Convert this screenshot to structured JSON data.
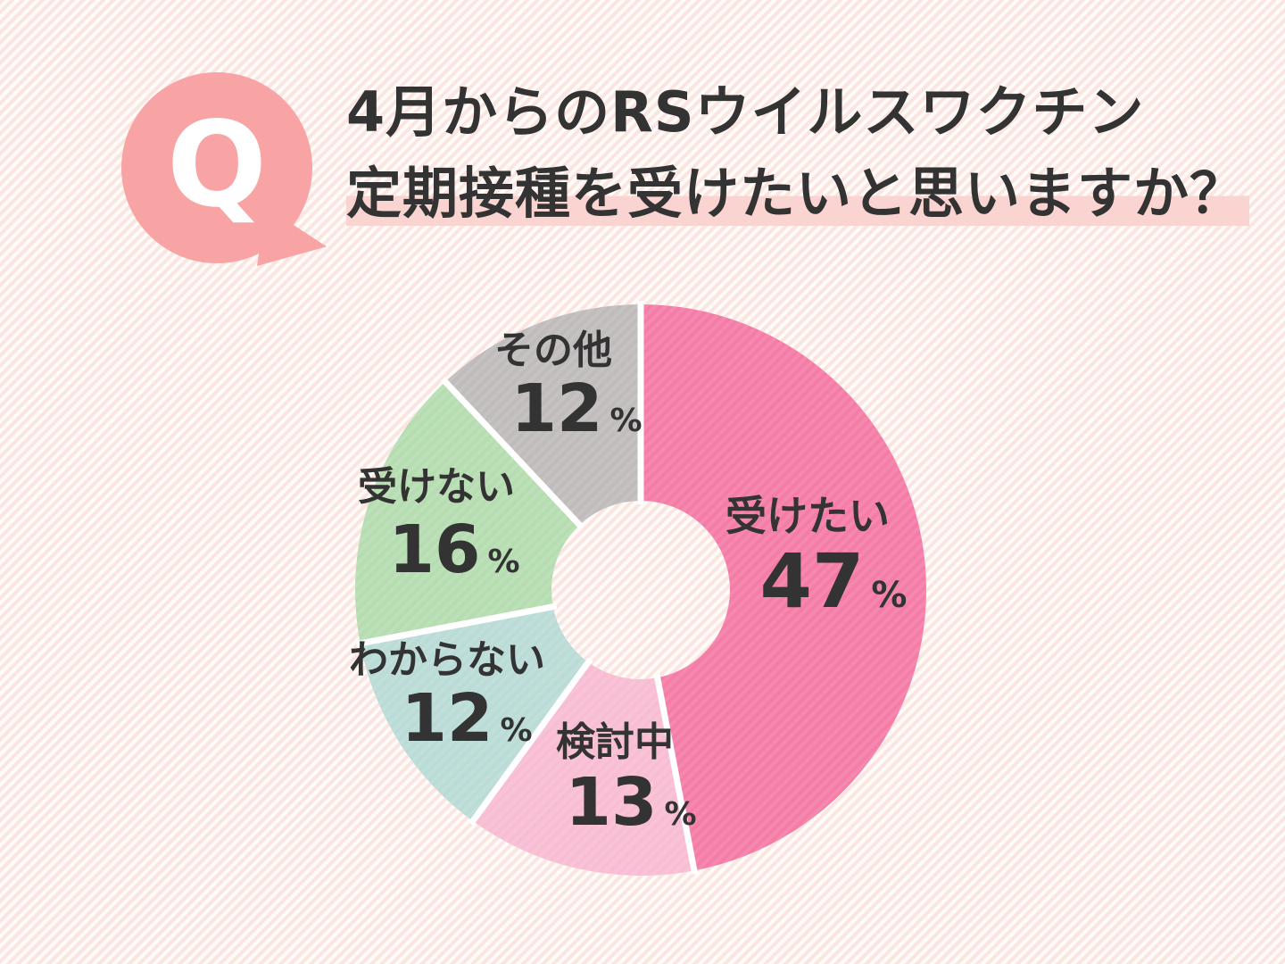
{
  "question": {
    "badge": "Q",
    "title_line1": "4月からのRSウイルスワクチン",
    "title_line2": "定期接種を受けたいと思いますか？"
  },
  "chart_data": {
    "type": "pie",
    "subtype": "donut",
    "title": "4月からのRSウイルスワクチン定期接種を受けたいと思いますか？",
    "unit": "%",
    "direction": "clockwise",
    "start_angle_deg": 0,
    "legend_position": "on-slices",
    "segments": [
      {
        "label": "受けたい",
        "value": 47,
        "color": "#f47ca6"
      },
      {
        "label": "検討中",
        "value": 13,
        "color": "#f8bdd3"
      },
      {
        "label": "わからない",
        "value": 12,
        "color": "#bbdcd6"
      },
      {
        "label": "受けない",
        "value": 16,
        "color": "#b6ddb1"
      },
      {
        "label": "その他",
        "value": 12,
        "color": "#bfbcbb"
      }
    ]
  },
  "colors": {
    "background_stripe_pink": "#fae5e1",
    "background_stripe_white": "#fefbf9",
    "bubble_pink": "#f8a3a4",
    "title_highlight": "#fad4d0",
    "text": "#333333",
    "slice_gap": "#ffffff"
  }
}
